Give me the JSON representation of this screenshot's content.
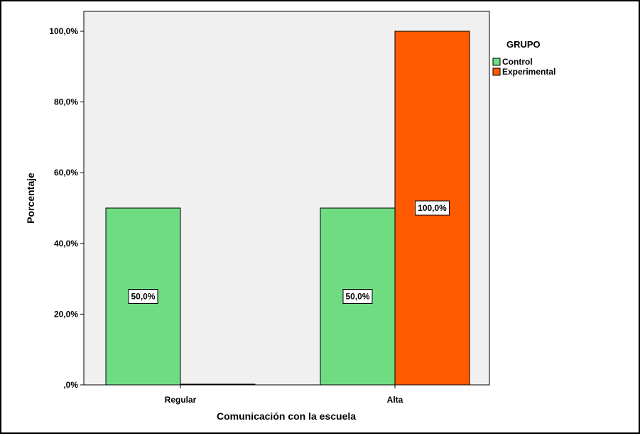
{
  "chart_data": {
    "type": "bar",
    "title": "",
    "xlabel": "Comunicación con la escuela",
    "ylabel": "Porcentaje",
    "ylim": [
      0,
      100
    ],
    "yticks": [
      0,
      20,
      40,
      60,
      80,
      100
    ],
    "ytick_labels": [
      ",0%",
      "20,0%",
      "40,0%",
      "60,0%",
      "80,0%",
      "100,0%"
    ],
    "categories": [
      "Regular",
      "Alta"
    ],
    "legend": {
      "title": "GRUPO",
      "placement": "top-right"
    },
    "series": [
      {
        "name": "Control",
        "color": "#6fdc82",
        "values": [
          50,
          50
        ],
        "labels": [
          "50,0%",
          "50,0%"
        ]
      },
      {
        "name": "Experimental",
        "color": "#ff5a00",
        "values": [
          0,
          100
        ],
        "labels": [
          "",
          "100,0%"
        ]
      }
    ],
    "plot_background": "#f0f0f0",
    "grid": false
  }
}
